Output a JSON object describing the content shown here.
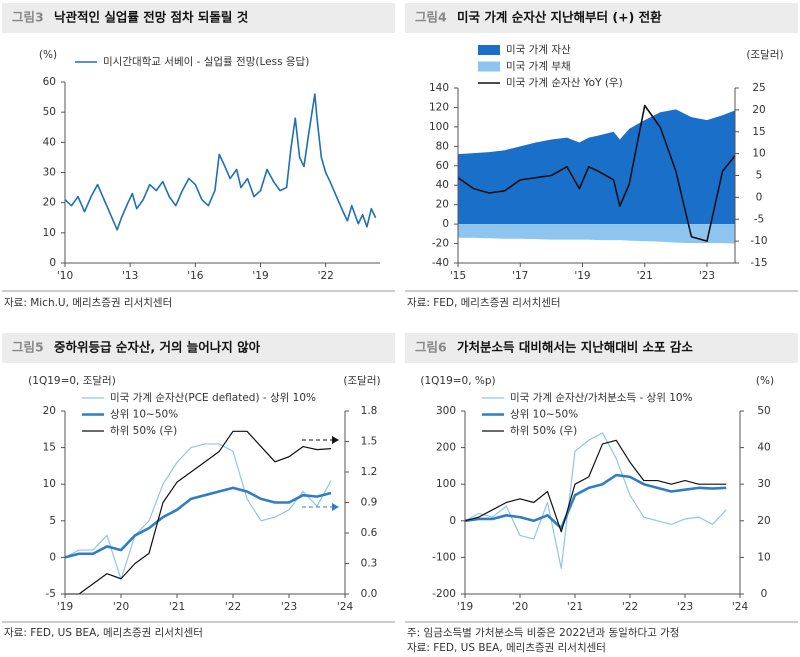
{
  "chart_data": [
    {
      "type": "line",
      "figure_label": "그림3",
      "title": "낙관적인 실업률 전망 점차 되돌릴 것",
      "y_unit": "(%)",
      "x": [
        2010.0,
        2010.3,
        2010.6,
        2010.9,
        2011.2,
        2011.5,
        2011.8,
        2012.1,
        2012.4,
        2012.6,
        2012.9,
        2013.1,
        2013.3,
        2013.6,
        2013.9,
        2014.2,
        2014.5,
        2014.8,
        2015.1,
        2015.4,
        2015.7,
        2016.0,
        2016.3,
        2016.6,
        2016.9,
        2017.1,
        2017.3,
        2017.6,
        2017.9,
        2018.1,
        2018.4,
        2018.7,
        2019.0,
        2019.3,
        2019.6,
        2019.9,
        2020.2,
        2020.4,
        2020.6,
        2020.8,
        2021.0,
        2021.2,
        2021.5,
        2021.6,
        2021.8,
        2022.0,
        2022.2,
        2022.5,
        2022.8,
        2023.0,
        2023.2,
        2023.5,
        2023.7,
        2023.9,
        2024.1,
        2024.3
      ],
      "series": [
        {
          "name": "미시간대학교 서베이 - 실업률 전망(Less 응답)",
          "color": "#1f6fb8",
          "kind": "line",
          "values": [
            21,
            19,
            22,
            17,
            22,
            26,
            21,
            16,
            11,
            15,
            20,
            23,
            18,
            21,
            26,
            24,
            27,
            22,
            19,
            24,
            28,
            26,
            21,
            19,
            24,
            36,
            33,
            28,
            31,
            25,
            28,
            22,
            24,
            31,
            27,
            24,
            25,
            38,
            48,
            35,
            32,
            42,
            56,
            48,
            35,
            30,
            27,
            22,
            17,
            14,
            19,
            13,
            16,
            12,
            18,
            15
          ]
        }
      ],
      "xlim": [
        2010,
        2024.5
      ],
      "xticks": [
        {
          "value": 2010,
          "label": "'10"
        },
        {
          "value": 2013,
          "label": "'13"
        },
        {
          "value": 2016,
          "label": "'16"
        },
        {
          "value": 2019,
          "label": "'19"
        },
        {
          "value": 2022,
          "label": "'22"
        }
      ],
      "ylim": [
        0,
        60
      ],
      "yticks": [
        0,
        10,
        20,
        30,
        40,
        50,
        60
      ],
      "notes": [
        "자료: Mich.U, 메리츠증권 리서치센터"
      ]
    },
    {
      "type": "combo",
      "figure_label": "그림4",
      "title": "미국 가계 순자산 지난해부터 (+) 전환",
      "y2_unit": "(조달러)",
      "x": [
        2015.0,
        2015.5,
        2016.0,
        2016.5,
        2017.0,
        2017.5,
        2018.0,
        2018.5,
        2018.9,
        2019.2,
        2019.5,
        2020.0,
        2020.2,
        2020.5,
        2021.0,
        2021.5,
        2022.0,
        2022.5,
        2023.0,
        2023.5,
        2023.9
      ],
      "series": [
        {
          "name": "미국 가계 자산",
          "color": "#1a6fc9",
          "kind": "area",
          "values": [
            72,
            73,
            74,
            76,
            80,
            84,
            87,
            89,
            84,
            89,
            91,
            95,
            87,
            98,
            107,
            115,
            118,
            110,
            107,
            112,
            117
          ]
        },
        {
          "name": "미국 가계 부채",
          "color": "#8ec5f0",
          "kind": "area",
          "values": [
            -14,
            -14,
            -14.5,
            -15,
            -15,
            -15.5,
            -16,
            -16,
            -16,
            -16,
            -16.5,
            -16.5,
            -16.5,
            -17,
            -17.5,
            -18,
            -19,
            -19.5,
            -19.5,
            -19.5,
            -20
          ]
        },
        {
          "name": "미국 가계 순자산 YoY (우)",
          "color": "#111111",
          "kind": "line",
          "axis": "y2",
          "values": [
            4.5,
            2,
            1,
            1.5,
            4,
            4.5,
            5,
            7,
            2,
            7,
            6,
            4,
            -2,
            3,
            21,
            16,
            6,
            -9,
            -10,
            6,
            9.5
          ]
        }
      ],
      "xlim": [
        2015,
        2023.9
      ],
      "xticks": [
        {
          "value": 2015,
          "label": "'15"
        },
        {
          "value": 2017,
          "label": "'17"
        },
        {
          "value": 2019,
          "label": "'19"
        },
        {
          "value": 2021,
          "label": "'21"
        },
        {
          "value": 2023,
          "label": "'23"
        }
      ],
      "ylim": [
        -40,
        140
      ],
      "yticks": [
        -40,
        -20,
        0,
        20,
        40,
        60,
        80,
        100,
        120,
        140
      ],
      "y2lim": [
        -15,
        25
      ],
      "y2ticks": [
        -15,
        -10,
        -5,
        0,
        5,
        10,
        15,
        20,
        25
      ],
      "notes": [
        "자료: FED, 메리츠증권 리서치센터"
      ]
    },
    {
      "type": "line",
      "figure_label": "그림5",
      "title": "중하위등급 순자산, 거의 늘어나지 않아",
      "y_unit": "(1Q19=0, 조달러)",
      "y2_unit": "(조달러)",
      "x": [
        2019,
        2019.25,
        2019.5,
        2019.75,
        2020,
        2020.25,
        2020.5,
        2020.75,
        2021,
        2021.25,
        2021.5,
        2021.75,
        2022,
        2022.25,
        2022.5,
        2022.75,
        2023,
        2023.25,
        2023.5,
        2023.75
      ],
      "series": [
        {
          "name": "미국 가계 순자산(PCE deflated) - 상위 10%",
          "color": "#8fc5ec",
          "kind": "line",
          "width": 1.2,
          "values": [
            0,
            1,
            1,
            3,
            -3,
            3,
            5,
            10,
            13,
            15,
            15.5,
            15.5,
            14.5,
            8,
            5,
            5.5,
            6.5,
            9,
            7,
            10.5
          ]
        },
        {
          "name": "상위 10~50%",
          "color": "#2f7ec4",
          "kind": "line",
          "width": 2.6,
          "values": [
            0,
            0.5,
            0.5,
            1.5,
            1,
            3,
            4,
            5.5,
            6.5,
            8,
            8.5,
            9,
            9.5,
            9,
            8,
            7.5,
            7.5,
            8.5,
            8.3,
            8.8
          ]
        },
        {
          "name": "하위 50% (우)",
          "color": "#111111",
          "kind": "line",
          "axis": "y2",
          "width": 1.2,
          "values": [
            0,
            0,
            0.1,
            0.2,
            0.15,
            0.3,
            0.4,
            0.9,
            1.1,
            1.2,
            1.3,
            1.4,
            1.6,
            1.6,
            1.45,
            1.3,
            1.35,
            1.45,
            1.42,
            1.43
          ]
        }
      ],
      "xlim": [
        2019,
        2024
      ],
      "xticks": [
        {
          "value": 2019,
          "label": "'19"
        },
        {
          "value": 2020,
          "label": "'20"
        },
        {
          "value": 2021,
          "label": "'21"
        },
        {
          "value": 2022,
          "label": "'22"
        },
        {
          "value": 2023,
          "label": "'23"
        },
        {
          "value": 2024,
          "label": "'24"
        }
      ],
      "ylim": [
        -5,
        20
      ],
      "yticks": [
        -5,
        0,
        5,
        10,
        15,
        20
      ],
      "y2lim": [
        0,
        1.8
      ],
      "y2ticks": [
        {
          "value": 0,
          "label": "0.0"
        },
        0.3,
        0.6,
        0.9,
        1.2,
        1.5,
        1.8
      ],
      "notes": [
        "자료: FED, US BEA, 메리츠증권 리서치센터"
      ]
    },
    {
      "type": "line",
      "figure_label": "그림6",
      "title": "가처분소득 대비해서는 지난해대비 소포 감소",
      "y_unit": "(1Q19=0, %p)",
      "y2_unit": "(%)",
      "x": [
        2019,
        2019.25,
        2019.5,
        2019.75,
        2020,
        2020.25,
        2020.5,
        2020.75,
        2021,
        2021.25,
        2021.5,
        2021.75,
        2022,
        2022.25,
        2022.5,
        2022.75,
        2023,
        2023.25,
        2023.5,
        2023.75
      ],
      "series": [
        {
          "name": "미국 가계 순자산/가처분소득 - 상위 10%",
          "color": "#8fc5ec",
          "kind": "line",
          "width": 1.2,
          "values": [
            0,
            20,
            10,
            40,
            -40,
            -50,
            50,
            -130,
            190,
            220,
            240,
            170,
            70,
            10,
            0,
            -10,
            5,
            10,
            -10,
            30
          ]
        },
        {
          "name": "상위 10~50%",
          "color": "#2f7ec4",
          "kind": "line",
          "width": 2.6,
          "values": [
            0,
            5,
            5,
            15,
            10,
            0,
            15,
            -20,
            70,
            90,
            100,
            125,
            120,
            100,
            90,
            80,
            85,
            90,
            88,
            90
          ]
        },
        {
          "name": "하위 50% (우)",
          "color": "#111111",
          "kind": "line",
          "axis": "y2",
          "width": 1.2,
          "values": [
            20,
            21,
            23,
            25,
            26,
            25,
            28,
            17,
            30,
            32,
            41,
            42,
            36,
            31,
            31,
            30,
            31,
            30,
            30,
            30
          ]
        }
      ],
      "xlim": [
        2019,
        2024
      ],
      "xticks": [
        {
          "value": 2019,
          "label": "'19"
        },
        {
          "value": 2020,
          "label": "'20"
        },
        {
          "value": 2021,
          "label": "'21"
        },
        {
          "value": 2022,
          "label": "'22"
        },
        {
          "value": 2023,
          "label": "'23"
        },
        {
          "value": 2024,
          "label": "'24"
        }
      ],
      "ylim": [
        -200,
        300
      ],
      "yticks": [
        -200,
        -100,
        0,
        100,
        200,
        300
      ],
      "y2lim": [
        0,
        50
      ],
      "y2ticks": [
        0,
        10,
        20,
        30,
        40,
        50
      ],
      "notes": [
        "주: 임금소득별 가처분소득 비중은 2022년과 동일하다고 가정",
        "자료: FED, US BEA, 메리츠증권 리서치센터"
      ]
    }
  ]
}
